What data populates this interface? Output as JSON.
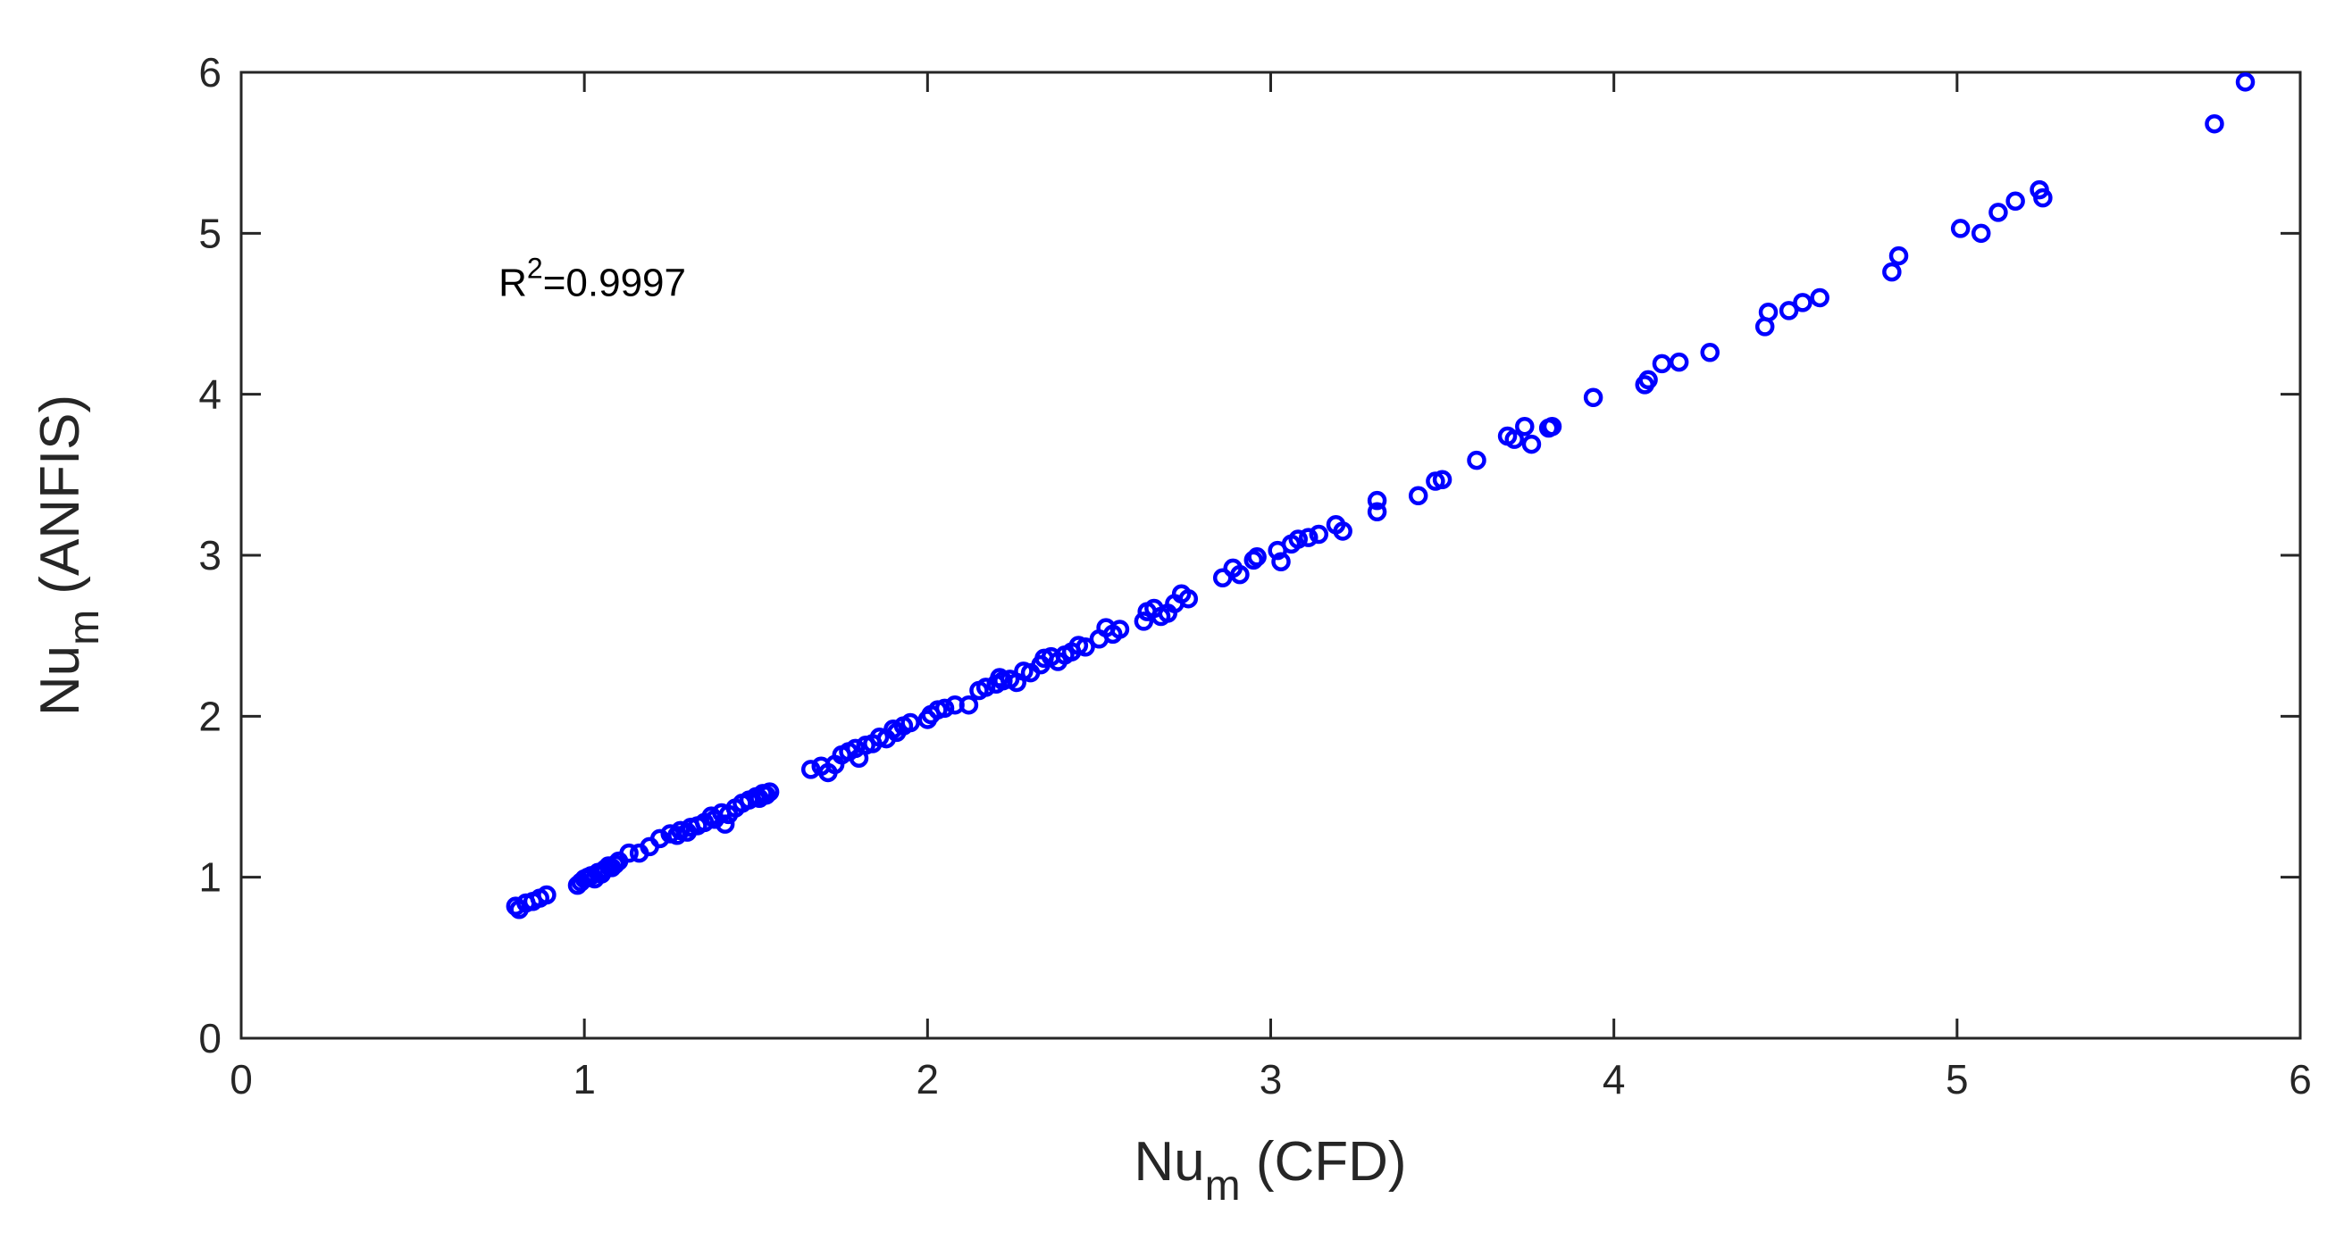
{
  "chart_data": {
    "type": "scatter",
    "title": "",
    "xlabel": {
      "main": "Nu",
      "sub": "m",
      "rest": " (CFD)"
    },
    "ylabel": {
      "main": "Nu",
      "sub": "m",
      "rest": " (ANFIS)"
    },
    "xlim": [
      0,
      6
    ],
    "ylim": [
      0,
      6
    ],
    "xticks": [
      "0",
      "1",
      "2",
      "3",
      "4",
      "5",
      "6"
    ],
    "yticks": [
      "0",
      "1",
      "2",
      "3",
      "4",
      "5",
      "6"
    ],
    "grid": false,
    "legend": "none",
    "marker": "open-circle",
    "color": "#0000ff",
    "annotation": {
      "base": "R",
      "sup": "2",
      "rest": "=0.9997",
      "x": 0.75,
      "y": 4.7
    },
    "series": [
      {
        "points": [
          [
            0.8,
            0.82
          ],
          [
            0.81,
            0.8
          ],
          [
            0.83,
            0.84
          ],
          [
            0.85,
            0.85
          ],
          [
            0.87,
            0.87
          ],
          [
            0.89,
            0.89
          ],
          [
            0.98,
            0.95
          ],
          [
            0.99,
            0.97
          ],
          [
            1.0,
            0.99
          ],
          [
            1.01,
            1.0
          ],
          [
            1.02,
            1.01
          ],
          [
            1.03,
            0.99
          ],
          [
            1.04,
            1.03
          ],
          [
            1.05,
            1.02
          ],
          [
            1.06,
            1.05
          ],
          [
            1.07,
            1.07
          ],
          [
            1.08,
            1.06
          ],
          [
            1.09,
            1.08
          ],
          [
            1.1,
            1.1
          ],
          [
            1.13,
            1.15
          ],
          [
            1.16,
            1.15
          ],
          [
            1.19,
            1.19
          ],
          [
            1.22,
            1.24
          ],
          [
            1.25,
            1.27
          ],
          [
            1.27,
            1.26
          ],
          [
            1.28,
            1.29
          ],
          [
            1.3,
            1.28
          ],
          [
            1.31,
            1.31
          ],
          [
            1.33,
            1.32
          ],
          [
            1.35,
            1.34
          ],
          [
            1.37,
            1.38
          ],
          [
            1.38,
            1.36
          ],
          [
            1.4,
            1.4
          ],
          [
            1.41,
            1.33
          ],
          [
            1.42,
            1.39
          ],
          [
            1.44,
            1.43
          ],
          [
            1.46,
            1.46
          ],
          [
            1.48,
            1.48
          ],
          [
            1.5,
            1.5
          ],
          [
            1.51,
            1.49
          ],
          [
            1.52,
            1.52
          ],
          [
            1.53,
            1.51
          ],
          [
            1.54,
            1.53
          ],
          [
            1.66,
            1.67
          ],
          [
            1.69,
            1.69
          ],
          [
            1.71,
            1.65
          ],
          [
            1.73,
            1.7
          ],
          [
            1.75,
            1.76
          ],
          [
            1.77,
            1.78
          ],
          [
            1.79,
            1.8
          ],
          [
            1.8,
            1.74
          ],
          [
            1.82,
            1.82
          ],
          [
            1.84,
            1.83
          ],
          [
            1.86,
            1.87
          ],
          [
            1.88,
            1.86
          ],
          [
            1.9,
            1.92
          ],
          [
            1.91,
            1.9
          ],
          [
            1.93,
            1.94
          ],
          [
            1.95,
            1.96
          ],
          [
            2.0,
            1.98
          ],
          [
            2.01,
            2.01
          ],
          [
            2.03,
            2.04
          ],
          [
            2.05,
            2.05
          ],
          [
            2.08,
            2.07
          ],
          [
            2.12,
            2.07
          ],
          [
            2.15,
            2.16
          ],
          [
            2.17,
            2.18
          ],
          [
            2.2,
            2.2
          ],
          [
            2.21,
            2.24
          ],
          [
            2.22,
            2.22
          ],
          [
            2.24,
            2.23
          ],
          [
            2.26,
            2.21
          ],
          [
            2.28,
            2.28
          ],
          [
            2.3,
            2.27
          ],
          [
            2.33,
            2.32
          ],
          [
            2.34,
            2.36
          ],
          [
            2.36,
            2.37
          ],
          [
            2.38,
            2.34
          ],
          [
            2.4,
            2.38
          ],
          [
            2.42,
            2.4
          ],
          [
            2.44,
            2.44
          ],
          [
            2.46,
            2.43
          ],
          [
            2.5,
            2.48
          ],
          [
            2.52,
            2.55
          ],
          [
            2.54,
            2.51
          ],
          [
            2.56,
            2.54
          ],
          [
            2.63,
            2.59
          ],
          [
            2.64,
            2.65
          ],
          [
            2.66,
            2.67
          ],
          [
            2.68,
            2.62
          ],
          [
            2.7,
            2.64
          ],
          [
            2.72,
            2.7
          ],
          [
            2.74,
            2.76
          ],
          [
            2.76,
            2.73
          ],
          [
            2.86,
            2.86
          ],
          [
            2.89,
            2.92
          ],
          [
            2.91,
            2.88
          ],
          [
            2.95,
            2.97
          ],
          [
            2.96,
            2.99
          ],
          [
            3.02,
            3.03
          ],
          [
            3.03,
            2.96
          ],
          [
            3.06,
            3.07
          ],
          [
            3.08,
            3.1
          ],
          [
            3.11,
            3.11
          ],
          [
            3.14,
            3.13
          ],
          [
            3.19,
            3.19
          ],
          [
            3.21,
            3.15
          ],
          [
            3.31,
            3.27
          ],
          [
            3.31,
            3.34
          ],
          [
            3.43,
            3.37
          ],
          [
            3.48,
            3.46
          ],
          [
            3.5,
            3.47
          ],
          [
            3.6,
            3.59
          ],
          [
            3.69,
            3.74
          ],
          [
            3.71,
            3.72
          ],
          [
            3.74,
            3.8
          ],
          [
            3.76,
            3.69
          ],
          [
            3.81,
            3.79
          ],
          [
            3.82,
            3.8
          ],
          [
            3.94,
            3.98
          ],
          [
            4.09,
            4.06
          ],
          [
            4.1,
            4.09
          ],
          [
            4.14,
            4.19
          ],
          [
            4.19,
            4.2
          ],
          [
            4.28,
            4.26
          ],
          [
            4.44,
            4.42
          ],
          [
            4.45,
            4.51
          ],
          [
            4.51,
            4.52
          ],
          [
            4.55,
            4.57
          ],
          [
            4.6,
            4.6
          ],
          [
            4.81,
            4.76
          ],
          [
            4.83,
            4.86
          ],
          [
            5.01,
            5.03
          ],
          [
            5.07,
            5.0
          ],
          [
            5.12,
            5.13
          ],
          [
            5.17,
            5.2
          ],
          [
            5.24,
            5.27
          ],
          [
            5.25,
            5.22
          ],
          [
            5.75,
            5.68
          ],
          [
            5.84,
            5.94
          ]
        ]
      }
    ]
  }
}
